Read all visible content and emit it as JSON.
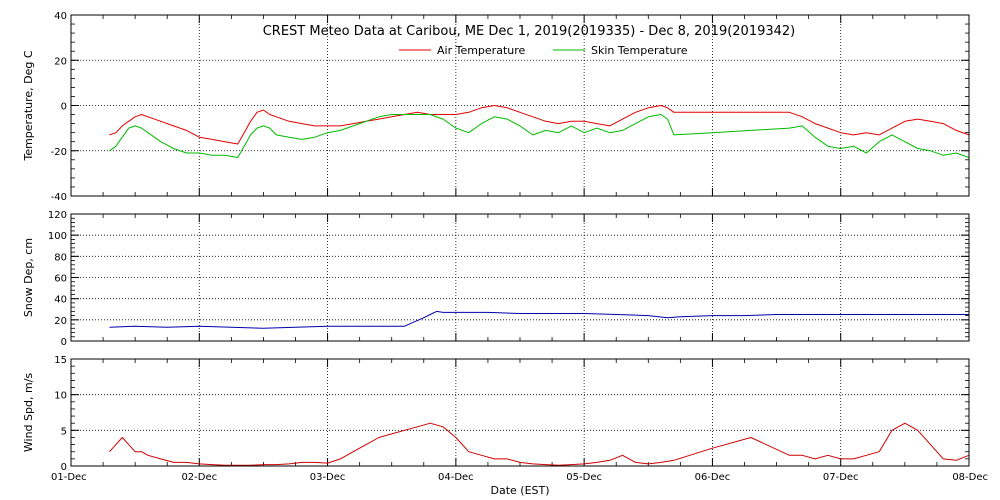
{
  "title": "CREST Meteo Data at Caribou, ME   Dec  1, 2019(2019335) - Dec  8, 2019(2019342)",
  "xlabel": "Date (EST)",
  "x_ticks": [
    "01-Dec",
    "02-Dec",
    "03-Dec",
    "04-Dec",
    "05-Dec",
    "06-Dec",
    "07-Dec",
    "08-Dec"
  ],
  "colors": {
    "air": "#e00000",
    "skin": "#00bb00",
    "snow": "#0000aa",
    "wind": "#cc0000"
  },
  "chart_data": [
    {
      "type": "line",
      "ylabel": "Temperature, Deg C",
      "xlim": [
        0,
        7
      ],
      "ylim": [
        -40,
        40
      ],
      "yticks": [
        -40,
        -20,
        0,
        20,
        40
      ],
      "grid": true,
      "legend_placement": "top-center",
      "series": [
        {
          "name": "Air Temperature",
          "x": [
            0.3,
            0.35,
            0.4,
            0.45,
            0.5,
            0.55,
            0.6,
            0.7,
            0.8,
            0.9,
            1.0,
            1.1,
            1.2,
            1.3,
            1.4,
            1.45,
            1.5,
            1.55,
            1.6,
            1.7,
            1.8,
            1.9,
            2.0,
            2.1,
            2.2,
            2.3,
            2.4,
            2.5,
            2.6,
            2.7,
            2.8,
            2.9,
            3.0,
            3.1,
            3.2,
            3.3,
            3.4,
            3.5,
            3.6,
            3.7,
            3.8,
            3.9,
            4.0,
            4.1,
            4.2,
            4.3,
            4.4,
            4.5,
            4.6,
            4.65,
            4.7,
            5.0,
            5.3,
            5.6,
            5.7,
            5.8,
            5.9,
            6.0,
            6.1,
            6.2,
            6.3,
            6.4,
            6.5,
            6.6,
            6.7,
            6.8,
            6.9,
            7.0
          ],
          "values": [
            -13,
            -12,
            -9,
            -7,
            -5,
            -4,
            -5,
            -7,
            -9,
            -11,
            -14,
            -15,
            -16,
            -17,
            -7,
            -3,
            -2,
            -4,
            -5,
            -7,
            -8,
            -9,
            -9,
            -9,
            -8,
            -7,
            -6,
            -5,
            -4,
            -3,
            -4,
            -4,
            -4,
            -3,
            -1,
            0,
            -1,
            -3,
            -5,
            -7,
            -8,
            -7,
            -7,
            -8,
            -9,
            -6,
            -3,
            -1,
            0,
            -1,
            -3,
            -3,
            -3,
            -3,
            -5,
            -8,
            -10,
            -12,
            -13,
            -12,
            -13,
            -10,
            -7,
            -6,
            -7,
            -8,
            -11,
            -13
          ]
        },
        {
          "name": "Skin Temperature",
          "x": [
            0.3,
            0.35,
            0.4,
            0.45,
            0.5,
            0.55,
            0.6,
            0.7,
            0.8,
            0.9,
            1.0,
            1.1,
            1.2,
            1.3,
            1.4,
            1.45,
            1.5,
            1.55,
            1.6,
            1.7,
            1.8,
            1.9,
            2.0,
            2.1,
            2.2,
            2.3,
            2.4,
            2.5,
            2.6,
            2.7,
            2.8,
            2.9,
            3.0,
            3.1,
            3.2,
            3.3,
            3.4,
            3.5,
            3.6,
            3.7,
            3.8,
            3.9,
            4.0,
            4.1,
            4.2,
            4.3,
            4.4,
            4.5,
            4.6,
            4.65,
            4.7,
            5.0,
            5.3,
            5.6,
            5.7,
            5.8,
            5.9,
            6.0,
            6.1,
            6.2,
            6.3,
            6.4,
            6.5,
            6.6,
            6.7,
            6.8,
            6.9,
            7.0
          ],
          "values": [
            -20,
            -18,
            -14,
            -10,
            -9,
            -10,
            -12,
            -16,
            -19,
            -21,
            -21,
            -22,
            -22,
            -23,
            -13,
            -10,
            -9,
            -10,
            -13,
            -14,
            -15,
            -14,
            -12,
            -11,
            -9,
            -7,
            -5,
            -4,
            -4,
            -4,
            -4,
            -6,
            -10,
            -12,
            -8,
            -5,
            -6,
            -9,
            -13,
            -11,
            -12,
            -9,
            -12,
            -10,
            -12,
            -11,
            -8,
            -5,
            -4,
            -6,
            -13,
            -12,
            -11,
            -10,
            -9,
            -14,
            -18,
            -19,
            -18,
            -21,
            -16,
            -13,
            -16,
            -19,
            -20,
            -22,
            -21,
            -23
          ]
        }
      ]
    },
    {
      "type": "line",
      "ylabel": "Snow Dep, cm",
      "xlim": [
        0,
        7
      ],
      "ylim": [
        0,
        120
      ],
      "yticks": [
        0,
        20,
        40,
        60,
        80,
        100,
        120
      ],
      "grid": true,
      "series": [
        {
          "x": [
            0.3,
            0.5,
            0.75,
            1.0,
            1.25,
            1.5,
            1.75,
            2.0,
            2.25,
            2.5,
            2.6,
            2.75,
            2.8,
            2.85,
            2.9,
            3.0,
            3.25,
            3.5,
            3.75,
            4.0,
            4.25,
            4.5,
            4.65,
            4.75,
            5.0,
            5.25,
            5.5,
            5.75,
            6.0,
            6.25,
            6.5,
            6.75,
            7.0
          ],
          "values": [
            13,
            14,
            13,
            14,
            13,
            12,
            13,
            14,
            14,
            14,
            14,
            22,
            25,
            28,
            27,
            27,
            27,
            26,
            26,
            26,
            25,
            24,
            22,
            23,
            24,
            24,
            25,
            25,
            25,
            25,
            25,
            25,
            25
          ]
        }
      ]
    },
    {
      "type": "line",
      "ylabel": "Wind Spd, m/s",
      "xlim": [
        0,
        7
      ],
      "ylim": [
        0,
        15
      ],
      "yticks": [
        0,
        5,
        10,
        15
      ],
      "grid": true,
      "series": [
        {
          "x": [
            0.3,
            0.35,
            0.4,
            0.45,
            0.5,
            0.55,
            0.6,
            0.7,
            0.8,
            0.9,
            1.0,
            1.1,
            1.2,
            1.3,
            1.4,
            1.5,
            1.6,
            1.7,
            1.8,
            1.9,
            2.0,
            2.1,
            2.2,
            2.3,
            2.4,
            2.5,
            2.6,
            2.7,
            2.8,
            2.9,
            3.0,
            3.1,
            3.2,
            3.3,
            3.4,
            3.5,
            3.6,
            3.7,
            3.8,
            3.9,
            4.0,
            4.1,
            4.2,
            4.3,
            4.4,
            4.5,
            4.6,
            4.7,
            5.0,
            5.3,
            5.6,
            5.7,
            5.8,
            5.9,
            6.0,
            6.1,
            6.2,
            6.3,
            6.4,
            6.5,
            6.6,
            6.7,
            6.8,
            6.9,
            7.0
          ],
          "values": [
            2,
            3,
            4,
            3,
            2,
            2,
            1.5,
            1,
            0.5,
            0.5,
            0.3,
            0.2,
            0.1,
            0.1,
            0.1,
            0.2,
            0.2,
            0.3,
            0.5,
            0.5,
            0.4,
            1,
            2,
            3,
            4,
            4.5,
            5,
            5.5,
            6,
            5.5,
            4,
            2,
            1.5,
            1,
            1,
            0.5,
            0.3,
            0.2,
            0.1,
            0.2,
            0.3,
            0.5,
            0.8,
            1.5,
            0.5,
            0.3,
            0.5,
            0.8,
            2.5,
            4,
            1.5,
            1.5,
            1,
            1.5,
            1,
            1,
            1.5,
            2,
            5,
            6,
            5,
            3,
            1,
            0.8,
            1.5
          ]
        }
      ]
    }
  ]
}
